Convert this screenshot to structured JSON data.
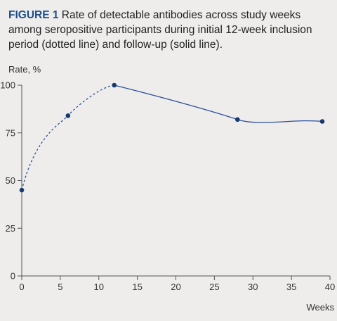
{
  "caption": {
    "label": "FIGURE 1",
    "text": "Rate of detectable antibodies across study weeks among seropositive participants during initial 12-week inclusion period (dotted line) and follow-up (solid line)."
  },
  "chart_data": {
    "type": "line",
    "ylabel": "Rate, %",
    "xlabel": "Weeks",
    "xlim": [
      0,
      40
    ],
    "ylim": [
      0,
      100
    ],
    "xticks": [
      0,
      5,
      10,
      15,
      20,
      25,
      30,
      35,
      40
    ],
    "yticks": [
      0,
      25,
      50,
      75,
      100
    ],
    "grid": false,
    "colors": {
      "line": "#2c4f9a",
      "marker": "#173a6e",
      "axis": "#555555",
      "caption_label": "#1d4e8c"
    },
    "series": [
      {
        "style": "dotted",
        "x": [
          0,
          6,
          12
        ],
        "y": [
          45,
          84,
          100
        ]
      },
      {
        "style": "solid",
        "x": [
          12,
          28,
          39
        ],
        "y": [
          100,
          82,
          81
        ]
      }
    ]
  }
}
